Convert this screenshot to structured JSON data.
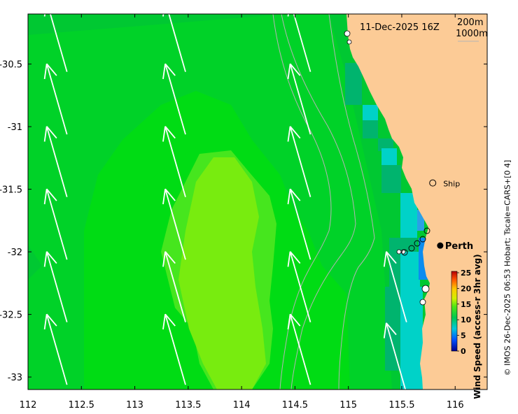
{
  "map": {
    "timestamp": "11-Dec-2025 16Z",
    "legend_depth_1": "200m",
    "legend_depth_2": "1000m",
    "lon_range": [
      112,
      116.3
    ],
    "lat_range": [
      -33.1,
      -30.1
    ],
    "x_ticks": [
      "112",
      "112.5",
      "113",
      "113.5",
      "114",
      "114.5",
      "115",
      "115.5",
      "116"
    ],
    "x_tick_values": [
      112,
      112.5,
      113,
      113.5,
      114,
      114.5,
      115,
      115.5,
      116
    ],
    "y_ticks": [
      "-30.5",
      "-31",
      "-31.5",
      "-32",
      "-32.5",
      "-33"
    ],
    "y_tick_values": [
      -30.5,
      -31,
      -31.5,
      -32,
      -32.5,
      -33
    ],
    "places": [
      {
        "name": "Ship",
        "lon": 115.79,
        "lat": -31.45,
        "marker": "open-circle"
      },
      {
        "name": "Perth",
        "lon": 115.86,
        "lat": -31.95,
        "marker": "filled-circle"
      }
    ],
    "colorbar": {
      "label": "Wind Speed (access-r 3hr avg)",
      "ticks": [
        "25",
        "20",
        "15",
        "10",
        "5",
        "0"
      ],
      "min": 0,
      "max": 25
    },
    "credit": "© IMOS 26-Dec-2025 06:53 Hobart; Tscale=CARS+[0 4]",
    "colors": {
      "land": "#fccb96",
      "wind_10": "#00c832",
      "wind_11": "#00d228",
      "wind_12": "#00dc14",
      "wind_13": "#46e61e",
      "wind_14": "#78ec0f",
      "near_coast": "#00b46e",
      "coastal_cyan": "#00d2c8",
      "bay_blue": "#0a8cf0",
      "arrow": "#ffffff",
      "isobath": "#b4b4b4"
    }
  },
  "wind_arrows": [
    {
      "lon": 112.27,
      "lat": -30.28,
      "dir_to_deg": 344
    },
    {
      "lon": 113.38,
      "lat": -30.28,
      "dir_to_deg": 344
    },
    {
      "lon": 114.55,
      "lat": -30.28,
      "dir_to_deg": 344
    },
    {
      "lon": 112.27,
      "lat": -30.78,
      "dir_to_deg": 344
    },
    {
      "lon": 113.38,
      "lat": -30.78,
      "dir_to_deg": 344
    },
    {
      "lon": 114.55,
      "lat": -30.78,
      "dir_to_deg": 344
    },
    {
      "lon": 112.27,
      "lat": -31.28,
      "dir_to_deg": 344
    },
    {
      "lon": 113.38,
      "lat": -31.28,
      "dir_to_deg": 344
    },
    {
      "lon": 114.55,
      "lat": -31.28,
      "dir_to_deg": 344
    },
    {
      "lon": 112.27,
      "lat": -31.78,
      "dir_to_deg": 344
    },
    {
      "lon": 113.38,
      "lat": -31.78,
      "dir_to_deg": 344
    },
    {
      "lon": 114.55,
      "lat": -31.78,
      "dir_to_deg": 344
    },
    {
      "lon": 112.27,
      "lat": -32.28,
      "dir_to_deg": 344
    },
    {
      "lon": 113.38,
      "lat": -32.28,
      "dir_to_deg": 344
    },
    {
      "lon": 114.55,
      "lat": -32.28,
      "dir_to_deg": 344
    },
    {
      "lon": 112.27,
      "lat": -32.78,
      "dir_to_deg": 344
    },
    {
      "lon": 113.38,
      "lat": -32.78,
      "dir_to_deg": 344
    },
    {
      "lon": 114.55,
      "lat": -32.78,
      "dir_to_deg": 344
    },
    {
      "lon": 115.45,
      "lat": -32.28,
      "dir_to_deg": 344
    },
    {
      "lon": 115.45,
      "lat": -32.85,
      "dir_to_deg": 344
    }
  ]
}
